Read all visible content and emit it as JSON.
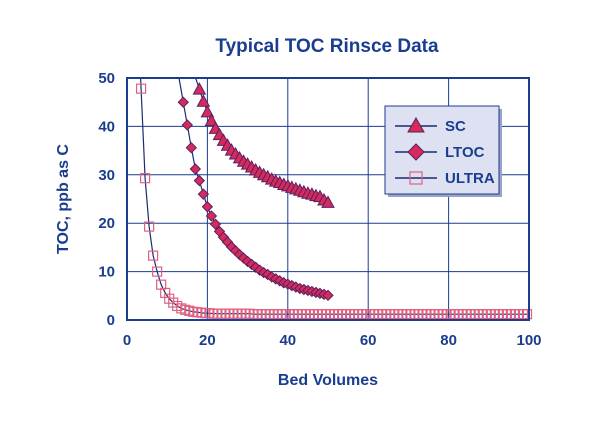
{
  "chart_data": {
    "type": "scatter",
    "title": "Typical TOC Rinsce Data",
    "xlabel": "Bed Volumes",
    "ylabel": "TOC, ppb as C",
    "xlim": [
      0,
      100
    ],
    "ylim": [
      0,
      50
    ],
    "x_ticks": [
      "0",
      "20",
      "40",
      "60",
      "80",
      "100"
    ],
    "y_ticks": [
      "0",
      "10",
      "20",
      "30",
      "40",
      "50"
    ],
    "grid": true,
    "legend_position": "top-right",
    "colors": {
      "text": "#1a3d8f",
      "frame": "#1a3d8f",
      "grid": "#1a3d8f",
      "plot_bg": "#ffffff",
      "legend_bg": "#dde1f2",
      "marker_fill": "#d42a5c",
      "marker_edge": "#5a2060",
      "line": "#1a2d6e",
      "ultra_marker": "#e06080"
    },
    "series": [
      {
        "name": "SC",
        "marker": "triangle",
        "x": [
          18,
          19,
          20,
          21,
          22,
          23,
          24,
          25,
          26,
          27,
          28,
          29,
          30,
          31,
          32,
          33,
          34,
          35,
          36,
          37,
          38,
          39,
          40,
          41,
          42,
          43,
          44,
          45,
          46,
          47,
          48,
          49,
          50
        ],
        "y": [
          47.7,
          45.2,
          43.0,
          41.2,
          39.6,
          38.3,
          37.1,
          36.1,
          35.1,
          34.3,
          33.5,
          32.8,
          32.2,
          31.6,
          31.0,
          30.5,
          30.0,
          29.6,
          29.1,
          28.7,
          28.4,
          28.0,
          27.7,
          27.4,
          27.1,
          26.8,
          26.5,
          26.2,
          26.0,
          25.7,
          25.5,
          24.8,
          24.3
        ]
      },
      {
        "name": "LTOC",
        "marker": "diamond",
        "x": [
          14,
          15,
          16,
          17,
          18,
          19,
          20,
          21,
          22,
          23,
          24,
          25,
          26,
          27,
          28,
          29,
          30,
          31,
          32,
          33,
          34,
          35,
          36,
          37,
          38,
          39,
          40,
          41,
          42,
          43,
          44,
          45,
          46,
          47,
          48,
          49,
          50
        ],
        "y": [
          45.0,
          40.3,
          35.6,
          31.2,
          28.8,
          26.0,
          23.4,
          21.5,
          19.8,
          18.3,
          17.1,
          16.1,
          15.1,
          14.3,
          13.5,
          12.8,
          12.1,
          11.5,
          10.9,
          10.3,
          9.8,
          9.4,
          8.9,
          8.5,
          8.1,
          7.7,
          7.4,
          7.1,
          6.8,
          6.5,
          6.3,
          6.1,
          5.9,
          5.7,
          5.5,
          5.3,
          5.1
        ]
      },
      {
        "name": "ULTRA",
        "marker": "square",
        "x": [
          3.5,
          4.5,
          5.5,
          6.5,
          7.5,
          8.5,
          9.5,
          10.5,
          11.5,
          12.5,
          13.5,
          14.5,
          15.5,
          16.5,
          17.5,
          18.5,
          19.5,
          20.5,
          21.5,
          22.5,
          23.5,
          24.5,
          25.5,
          26.5,
          27.5,
          28.5,
          29.5,
          30.5,
          31.5,
          32.5,
          33.5,
          34.5,
          35.5,
          36.5,
          37.5,
          38.5,
          39.5,
          40.5,
          41.5,
          42.5,
          43.5,
          44.5,
          45.5,
          46.5,
          47.5,
          48.5,
          49.5,
          50.5,
          51.5,
          52.5,
          53.5,
          54.5,
          55.5,
          56.5,
          57.5,
          58.5,
          59.5,
          60.5,
          61.5,
          62.5,
          63.5,
          64.5,
          65.5,
          66.5,
          67.5,
          68.5,
          69.5,
          70.5,
          71.5,
          72.5,
          73.5,
          74.5,
          75.5,
          76.5,
          77.5,
          78.5,
          79.5,
          80.5,
          81.5,
          82.5,
          83.5,
          84.5,
          85.5,
          86.5,
          87.5,
          88.5,
          89.5,
          90.5,
          91.5,
          92.5,
          93.5,
          94.5,
          95.5,
          96.5,
          97.5,
          98.5,
          99.5
        ],
        "y": [
          47.8,
          29.3,
          19.3,
          13.3,
          10.0,
          7.3,
          5.6,
          4.4,
          3.6,
          2.9,
          2.4,
          2.1,
          1.9,
          1.7,
          1.6,
          1.5,
          1.4,
          1.4,
          1.3,
          1.3,
          1.3,
          1.3,
          1.3,
          1.3,
          1.3,
          1.3,
          1.3,
          1.3,
          1.2,
          1.2,
          1.2,
          1.2,
          1.2,
          1.2,
          1.2,
          1.2,
          1.2,
          1.2,
          1.2,
          1.2,
          1.2,
          1.2,
          1.2,
          1.2,
          1.2,
          1.2,
          1.2,
          1.2,
          1.2,
          1.2,
          1.2,
          1.2,
          1.2,
          1.2,
          1.2,
          1.2,
          1.2,
          1.2,
          1.2,
          1.2,
          1.2,
          1.2,
          1.2,
          1.2,
          1.2,
          1.2,
          1.2,
          1.2,
          1.2,
          1.2,
          1.2,
          1.2,
          1.2,
          1.2,
          1.2,
          1.2,
          1.2,
          1.2,
          1.2,
          1.2,
          1.2,
          1.2,
          1.2,
          1.2,
          1.2,
          1.2,
          1.2,
          1.2,
          1.2,
          1.2,
          1.2,
          1.2,
          1.2,
          1.2,
          1.2,
          1.2,
          1.2
        ]
      }
    ]
  }
}
